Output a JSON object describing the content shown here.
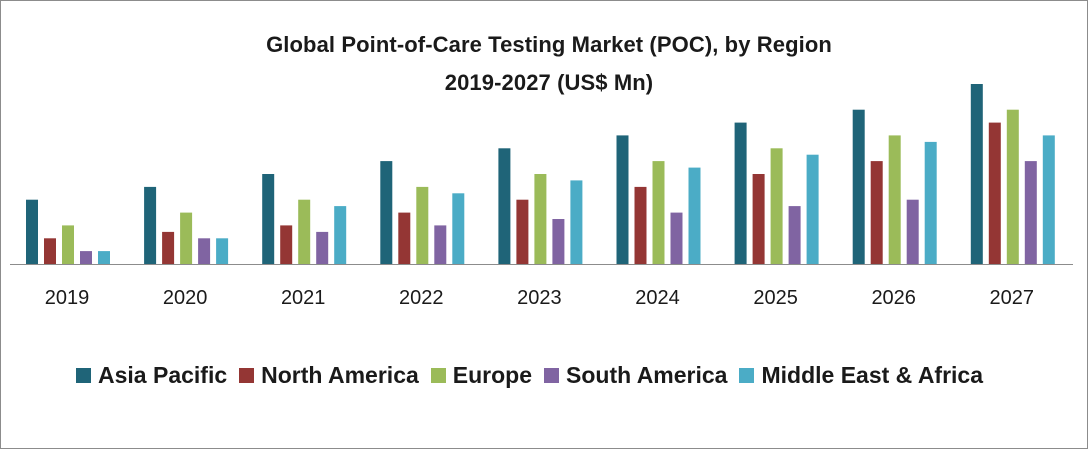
{
  "chart_data": {
    "type": "bar",
    "title": "Global Point-of-Care Testing Market (POC), by Region",
    "subtitle": "2019-2027 (US$ Mn)",
    "xlabel": "",
    "ylabel": "",
    "categories": [
      "2019",
      "2020",
      "2021",
      "2022",
      "2023",
      "2024",
      "2025",
      "2026",
      "2027"
    ],
    "series": [
      {
        "name": "Asia Pacific",
        "color": "#1f6478",
        "values": [
          5.0,
          6.0,
          7.0,
          8.0,
          9.0,
          10.0,
          11.0,
          12.0,
          14.0
        ]
      },
      {
        "name": "North America",
        "color": "#943634",
        "values": [
          2.0,
          2.5,
          3.0,
          4.0,
          5.0,
          6.0,
          7.0,
          8.0,
          11.0
        ]
      },
      {
        "name": "Europe",
        "color": "#9bbb59",
        "values": [
          3.0,
          4.0,
          5.0,
          6.0,
          7.0,
          8.0,
          9.0,
          10.0,
          12.0
        ]
      },
      {
        "name": "South America",
        "color": "#8064a2",
        "values": [
          1.0,
          2.0,
          2.5,
          3.0,
          3.5,
          4.0,
          4.5,
          5.0,
          8.0
        ]
      },
      {
        "name": "Middle East & Africa",
        "color": "#4bacc6",
        "values": [
          1.0,
          2.0,
          4.5,
          5.5,
          6.5,
          7.5,
          8.5,
          9.5,
          10.0
        ]
      }
    ],
    "ylim": [
      0,
      14
    ],
    "grid": false,
    "legend_position": "bottom"
  }
}
